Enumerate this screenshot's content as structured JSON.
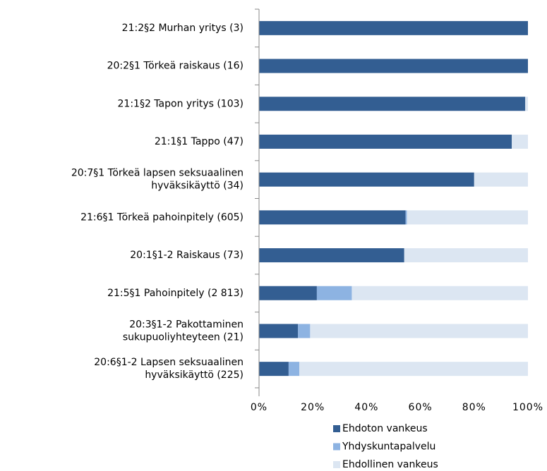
{
  "chart_data": {
    "type": "stacked_bar_horizontal",
    "categories": [
      "21:2§2 Murhan yritys (3)",
      "20:2§1 Törkeä raiskaus (16)",
      "21:1§2 Tapon yritys (103)",
      "21:1§1 Tappo (47)",
      "20:7§1 Törkeä lapsen seksuaalinen\nhyväksikäyttö (34)",
      "21:6§1 Törkeä pahoinpitely (605)",
      "20:1§1-2 Raiskaus (73)",
      "21:5§1 Pahoinpitely (2 813)",
      "20:3§1-2 Pakottaminen\nsukupuoliyhteyteen (21)",
      "20:6§1-2 Lapsen seksuaalinen\nhyväksikäyttö (225)"
    ],
    "series": [
      {
        "name": "Ehdoton vankeus",
        "color": "#335e92",
        "values": [
          100,
          100,
          99,
          94,
          80,
          54.5,
          54,
          21.5,
          14.5,
          11
        ]
      },
      {
        "name": "Yhdyskuntapalvelu",
        "color": "#8db3e2",
        "values": [
          0,
          0,
          0,
          0,
          0,
          0.5,
          0,
          13,
          4.5,
          4
        ]
      },
      {
        "name": "Ehdollinen vankeus",
        "color": "#dce6f2",
        "values": [
          0,
          0,
          1,
          6,
          20,
          45,
          46,
          65.5,
          81,
          85
        ]
      }
    ],
    "xlim": [
      0,
      100
    ],
    "xticks": [
      {
        "value": 0,
        "label": "0%"
      },
      {
        "value": 20,
        "label": "20%"
      },
      {
        "value": 40,
        "label": "40%"
      },
      {
        "value": 60,
        "label": "60%"
      },
      {
        "value": 80,
        "label": "80%"
      },
      {
        "value": 100,
        "label": "100%"
      }
    ],
    "legend": "bottom"
  }
}
